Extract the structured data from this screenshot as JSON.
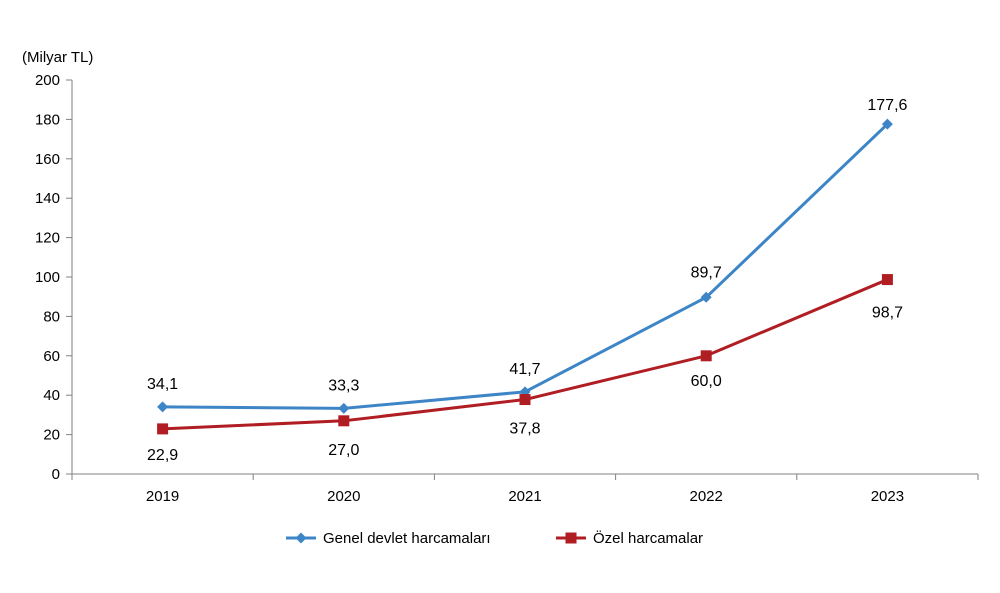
{
  "chart_data": {
    "type": "line",
    "title": "",
    "unit_label": "(Milyar TL)",
    "xlabel": "",
    "ylabel": "",
    "categories": [
      "2019",
      "2020",
      "2021",
      "2022",
      "2023"
    ],
    "ylim": [
      0,
      200
    ],
    "yticks": [
      0,
      20,
      40,
      60,
      80,
      100,
      120,
      140,
      160,
      180,
      200
    ],
    "grid": false,
    "legend_position": "bottom-center",
    "series": [
      {
        "name": "Genel devlet harcamaları",
        "values": [
          34.1,
          33.3,
          41.7,
          89.7,
          177.6
        ],
        "labels": [
          "34,1",
          "33,3",
          "41,7",
          "89,7",
          "177,6"
        ],
        "color": "#3d85c6",
        "marker": "diamond"
      },
      {
        "name": "Özel harcamalar",
        "values": [
          22.9,
          27.0,
          37.8,
          60.0,
          98.7
        ],
        "labels": [
          "22,9",
          "27,0",
          "37,8",
          "60,0",
          "98,7"
        ],
        "color": "#b01e23",
        "marker": "square"
      }
    ]
  }
}
